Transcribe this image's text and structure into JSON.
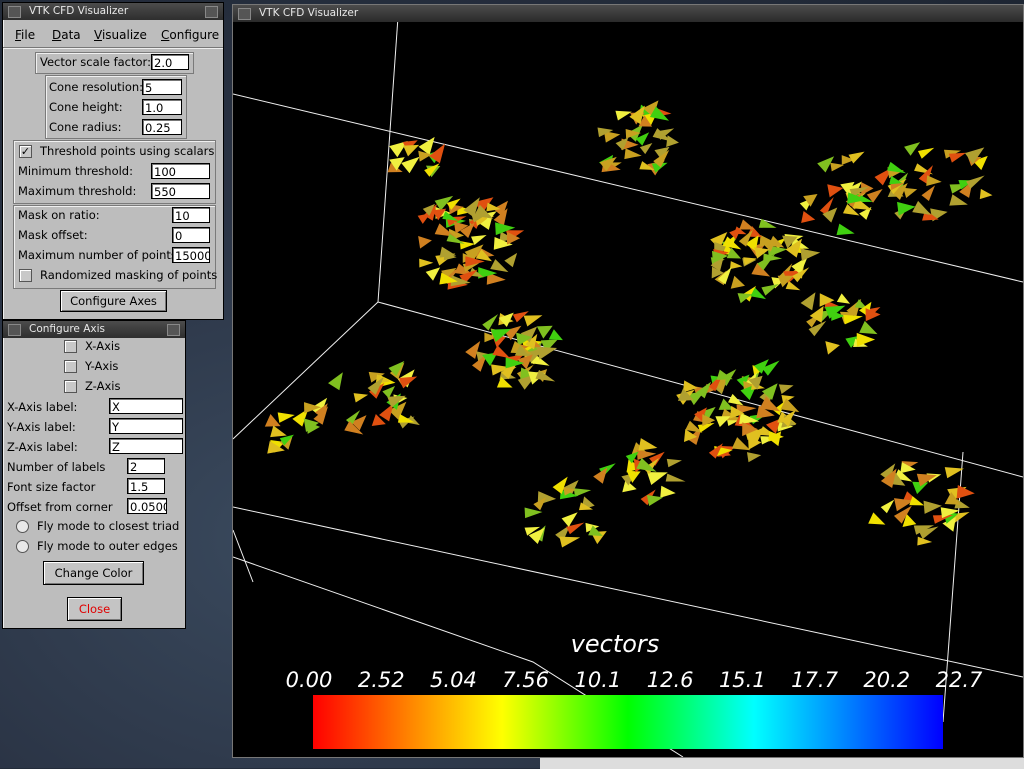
{
  "control_window": {
    "title": "VTK CFD Visualizer",
    "menu": [
      "File",
      "Data",
      "Visualize",
      "Configure"
    ],
    "vector_scale_label": "Vector scale factor:",
    "vector_scale_value": "2.0",
    "cone_resolution_label": "Cone resolution:",
    "cone_resolution_value": "5",
    "cone_height_label": "Cone height:",
    "cone_height_value": "1.0",
    "cone_radius_label": "Cone radius:",
    "cone_radius_value": "0.25",
    "threshold_label": "Threshold points using scalars",
    "threshold_checked": true,
    "min_threshold_label": "Minimum threshold:",
    "min_threshold_value": "100",
    "max_threshold_label": "Maximum threshold:",
    "max_threshold_value": "550",
    "mask_ratio_label": "Mask on ratio:",
    "mask_ratio_value": "10",
    "mask_offset_label": "Mask offset:",
    "mask_offset_value": "0",
    "max_points_label": "Maximum number of points:",
    "max_points_value": "15000",
    "randomized_label": "Randomized masking of points",
    "configure_axes_label": "Configure Axes"
  },
  "axis_window": {
    "title": "Configure Axis",
    "x_axis_label": "X-Axis",
    "y_axis_label": "Y-Axis",
    "z_axis_label": "Z-Axis",
    "x_label_caption": "X-Axis label:",
    "x_label_value": "X",
    "y_label_caption": "Y-Axis label:",
    "y_label_value": "Y",
    "z_label_caption": "Z-Axis label:",
    "z_label_value": "Z",
    "num_labels_caption": "Number of labels",
    "num_labels_value": "2",
    "font_size_caption": "Font size factor",
    "font_size_value": "1.5",
    "offset_caption": "Offset from corner",
    "offset_value": "0.0500",
    "fly_closest_label": "Fly mode to closest triad",
    "fly_outer_label": "Fly mode to outer edges",
    "change_color_label": "Change Color",
    "close_label": "Close",
    "close_color": "#e00000"
  },
  "viewport": {
    "title": "VTK CFD Visualizer",
    "colorbar_title": "vectors",
    "colorbar_ticks": [
      "0.00",
      "2.52",
      "5.04",
      "7.56",
      "10.1",
      "12.6",
      "15.1",
      "17.7",
      "20.2",
      "22.7"
    ]
  }
}
